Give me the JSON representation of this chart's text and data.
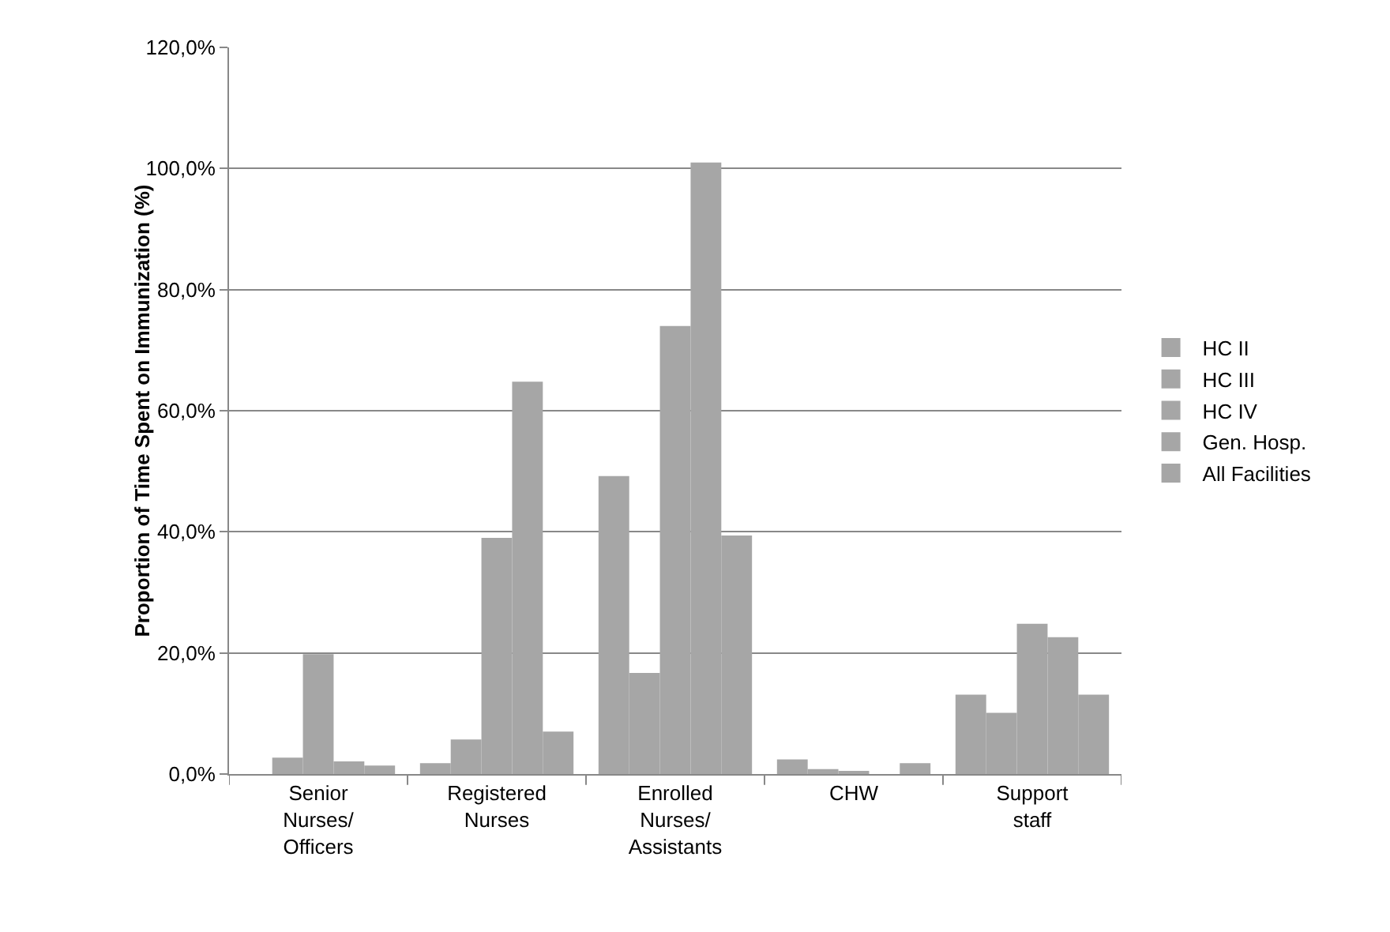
{
  "chart_data": {
    "type": "bar",
    "ylabel": "Proportion of Time Spent on Immunization (%)",
    "categories": [
      "Senior Nurses/ Officers",
      "Registered Nurses",
      "Enrolled Nurses/ Assistants",
      "CHW",
      "Support staff"
    ],
    "series": [
      {
        "name": "HC II",
        "color": "#a6a6a6",
        "values": [
          0,
          1.8,
          49.2,
          2.4,
          13.1
        ]
      },
      {
        "name": "HC III",
        "color": "#a6a6a6",
        "values": [
          2.7,
          5.7,
          16.7,
          0.8,
          10.1
        ]
      },
      {
        "name": "HC IV",
        "color": "#a6a6a6",
        "values": [
          19.8,
          39,
          74,
          0.5,
          24.8
        ]
      },
      {
        "name": "Gen. Hosp.",
        "color": "#a6a6a6",
        "values": [
          2.1,
          64.8,
          101,
          0,
          22.6
        ]
      },
      {
        "name": "All Facilities",
        "color": "#a6a6a6",
        "values": [
          1.4,
          7,
          39.4,
          1.8,
          13.1
        ]
      }
    ],
    "ylim": [
      0,
      120
    ],
    "yticks": [
      {
        "value": 0,
        "label": "0,0%"
      },
      {
        "value": 20,
        "label": "20,0%"
      },
      {
        "value": 40,
        "label": "40,0%"
      },
      {
        "value": 60,
        "label": "60,0%"
      },
      {
        "value": 80,
        "label": "80,0%"
      },
      {
        "value": 100,
        "label": "100,0%"
      },
      {
        "value": 120,
        "label": "120,0%"
      }
    ],
    "grid": "y",
    "legend": "right"
  }
}
